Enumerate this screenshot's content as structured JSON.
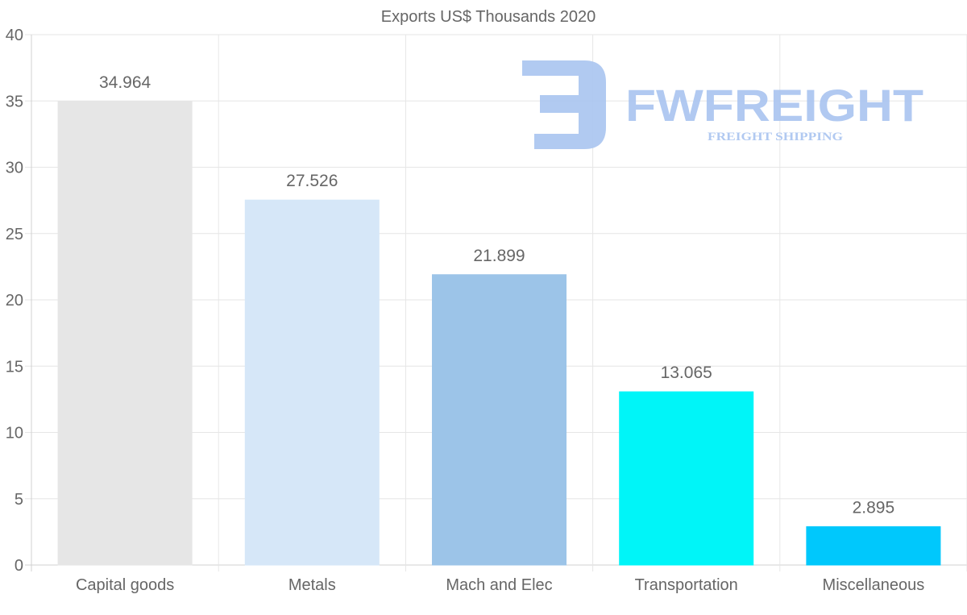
{
  "chart_data": {
    "type": "bar",
    "title": "Exports US$ Thousands 2020",
    "categories": [
      "Capital goods",
      "Metals",
      "Mach and Elec",
      "Transportation",
      "Miscellaneous"
    ],
    "values": [
      34.964,
      27.526,
      21.899,
      13.065,
      2.895
    ],
    "value_labels": [
      "34.964",
      "27.526",
      "21.899",
      "13.065",
      "2.895"
    ],
    "colors": [
      "#e6e6e6",
      "#d6e7f8",
      "#9cc4e8",
      "#00f5f8",
      "#00c8fc"
    ],
    "ylim": [
      0,
      40
    ],
    "yticks": [
      0,
      5,
      10,
      15,
      20,
      25,
      30,
      35,
      40
    ],
    "xlabel": "",
    "ylabel": "",
    "grid": true,
    "legend": "none"
  },
  "watermark": {
    "brand": "FWFREIGHT",
    "tagline": "FREIGHT SHIPPING",
    "color": "#a9c4f0"
  }
}
